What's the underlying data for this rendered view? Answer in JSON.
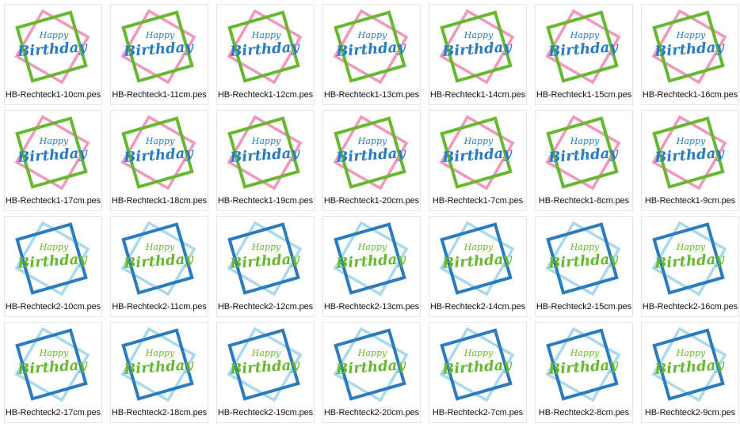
{
  "palettes": {
    "1": {
      "back": "#f08cb4",
      "front": "#66b82e",
      "text": "#2a7bbf"
    },
    "2": {
      "back": "#9dd6ea",
      "front": "#2a7bbf",
      "text": "#66b82e"
    }
  },
  "thumb_text": {
    "line1": "Happy",
    "line2": "Birthday"
  },
  "files": [
    {
      "name": "HB-Rechteck1-10cm.pes",
      "palette": "1"
    },
    {
      "name": "HB-Rechteck1-11cm.pes",
      "palette": "1"
    },
    {
      "name": "HB-Rechteck1-12cm.pes",
      "palette": "1"
    },
    {
      "name": "HB-Rechteck1-13cm.pes",
      "palette": "1"
    },
    {
      "name": "HB-Rechteck1-14cm.pes",
      "palette": "1"
    },
    {
      "name": "HB-Rechteck1-15cm.pes",
      "palette": "1"
    },
    {
      "name": "HB-Rechteck1-16cm.pes",
      "palette": "1"
    },
    {
      "name": "HB-Rechteck1-17cm.pes",
      "palette": "1"
    },
    {
      "name": "HB-Rechteck1-18cm.pes",
      "palette": "1"
    },
    {
      "name": "HB-Rechteck1-19cm.pes",
      "palette": "1"
    },
    {
      "name": "HB-Rechteck1-20cm.pes",
      "palette": "1"
    },
    {
      "name": "HB-Rechteck1-7cm.pes",
      "palette": "1"
    },
    {
      "name": "HB-Rechteck1-8cm.pes",
      "palette": "1"
    },
    {
      "name": "HB-Rechteck1-9cm.pes",
      "palette": "1"
    },
    {
      "name": "HB-Rechteck2-10cm.pes",
      "palette": "2"
    },
    {
      "name": "HB-Rechteck2-11cm.pes",
      "palette": "2"
    },
    {
      "name": "HB-Rechteck2-12cm.pes",
      "palette": "2"
    },
    {
      "name": "HB-Rechteck2-13cm.pes",
      "palette": "2"
    },
    {
      "name": "HB-Rechteck2-14cm.pes",
      "palette": "2"
    },
    {
      "name": "HB-Rechteck2-15cm.pes",
      "palette": "2"
    },
    {
      "name": "HB-Rechteck2-16cm.pes",
      "palette": "2"
    },
    {
      "name": "HB-Rechteck2-17cm.pes",
      "palette": "2"
    },
    {
      "name": "HB-Rechteck2-18cm.pes",
      "palette": "2"
    },
    {
      "name": "HB-Rechteck2-19cm.pes",
      "palette": "2"
    },
    {
      "name": "HB-Rechteck2-20cm.pes",
      "palette": "2"
    },
    {
      "name": "HB-Rechteck2-7cm.pes",
      "palette": "2"
    },
    {
      "name": "HB-Rechteck2-8cm.pes",
      "palette": "2"
    },
    {
      "name": "HB-Rechteck2-9cm.pes",
      "palette": "2"
    }
  ]
}
